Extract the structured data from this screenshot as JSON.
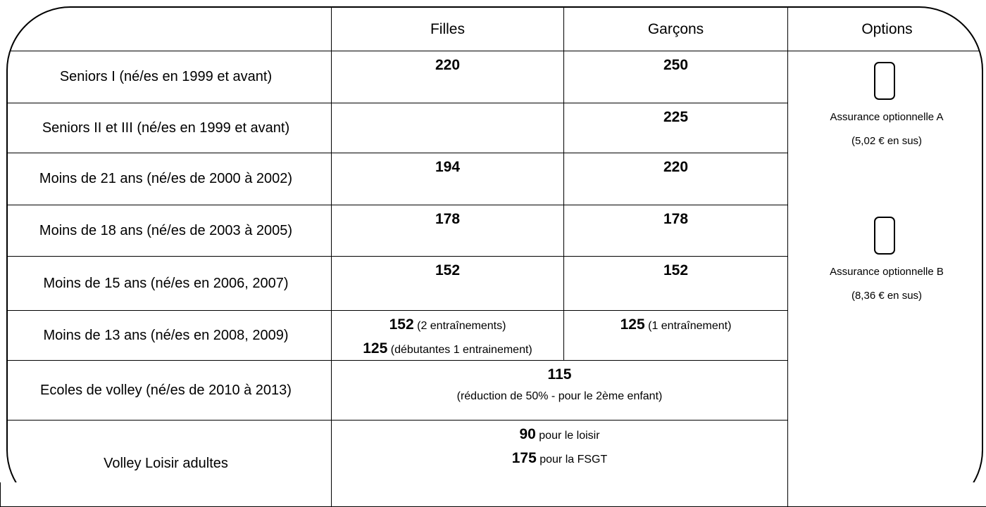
{
  "table": {
    "columns": [
      "Filles",
      "Garçons",
      "Options"
    ],
    "rows": [
      {
        "label": "Seniors I (né/es en 1999 et avant)",
        "filles": [
          {
            "amount": "220"
          }
        ],
        "garcons": [
          {
            "amount": "250"
          }
        ]
      },
      {
        "label": "Seniors II et III (né/es en 1999 et avant)",
        "garcons": [
          {
            "amount": "225"
          }
        ]
      },
      {
        "label": "Moins de 21 ans (né/es de 2000 à 2002)",
        "filles": [
          {
            "amount": "194"
          }
        ],
        "garcons": [
          {
            "amount": "220"
          }
        ]
      },
      {
        "label": "Moins de 18 ans (né/es de 2003 à 2005)",
        "filles": [
          {
            "amount": "178"
          }
        ],
        "garcons": [
          {
            "amount": "178"
          }
        ]
      },
      {
        "label": "Moins de 15 ans (né/es en 2006, 2007)",
        "filles": [
          {
            "amount": "152"
          }
        ],
        "garcons": [
          {
            "amount": "152"
          }
        ]
      },
      {
        "label": "Moins de 13 ans (né/es en 2008, 2009)",
        "filles": [
          {
            "amount": "152",
            "note": "(2 entraînements)"
          },
          {
            "amount": "125",
            "note": "(débutantes 1 entrainement)"
          }
        ],
        "garcons": [
          {
            "amount": "125",
            "note": "(1 entraînement)"
          }
        ]
      },
      {
        "label": "Ecoles de volley (né/es de 2010 à 2013)",
        "both": [
          {
            "amount": "115"
          },
          {
            "note": "(réduction de 50%  - pour le 2ème enfant)"
          }
        ]
      },
      {
        "label": "Volley Loisir adultes",
        "both": [
          {
            "amount": "90",
            "note": "pour le loisir"
          },
          {
            "amount": "175",
            "note": "pour la FSGT"
          }
        ]
      }
    ],
    "options": [
      {
        "label": "Assurance optionnelle A",
        "price": "(5,02 € en sus)"
      },
      {
        "label": "Assurance optionnelle B",
        "price": "(8,36 € en sus)"
      }
    ]
  }
}
